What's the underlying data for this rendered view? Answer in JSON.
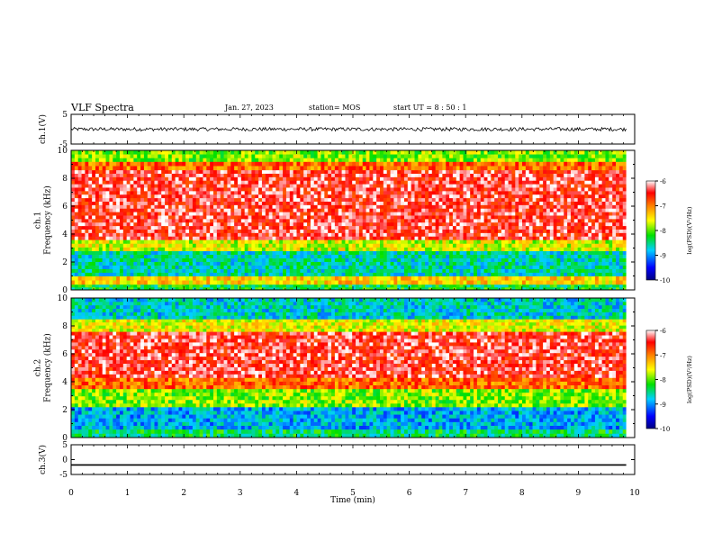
{
  "header": {
    "title": "VLF Spectra",
    "date": "Jan. 27, 2023",
    "station": "station= MOS",
    "start_ut": "start  UT =   8  : 50 : 1"
  },
  "chart_data": [
    {
      "type": "line",
      "panel": "ch1-waveform",
      "ylabel": "ch.1(V)",
      "ylim": [
        -5,
        5
      ],
      "yticks": [
        "5",
        "-5"
      ],
      "x_range_min": [
        0,
        9.85
      ],
      "y_level": 0,
      "noise_amplitude": 0.6,
      "color": "#000000"
    },
    {
      "type": "heatmap",
      "panel": "ch1-spectrogram",
      "ylabel": "ch.1\nFrequency (kHz)",
      "ylim": [
        0,
        10
      ],
      "yticks": [
        "0",
        "2",
        "4",
        "6",
        "8",
        "10"
      ],
      "x_range_min": [
        0,
        9.85
      ],
      "colorbar": {
        "label": "log(PSD)(V²/Hz)",
        "range": [
          -10,
          -6
        ],
        "ticks": [
          "-6",
          "-7",
          "-8",
          "-9",
          "-10"
        ]
      },
      "bands_logpsd": [
        {
          "f": [
            0,
            0.4
          ],
          "level": -8.3
        },
        {
          "f": [
            0.4,
            1.0
          ],
          "level": -7.4
        },
        {
          "f": [
            1.0,
            2.8
          ],
          "level": -8.6
        },
        {
          "f": [
            2.8,
            3.6
          ],
          "level": -7.7
        },
        {
          "f": [
            3.6,
            8.6
          ],
          "level": -6.4
        },
        {
          "f": [
            8.6,
            9.2
          ],
          "level": -6.9
        },
        {
          "f": [
            9.2,
            10
          ],
          "level": -7.9
        }
      ]
    },
    {
      "type": "heatmap",
      "panel": "ch2-spectrogram",
      "ylabel": "ch.2\nFrequency (kHz)",
      "ylim": [
        0,
        10
      ],
      "yticks": [
        "0",
        "2",
        "4",
        "6",
        "8",
        "10"
      ],
      "x_range_min": [
        0,
        9.85
      ],
      "colorbar": {
        "label": "log(PSD)(V²/Hz)",
        "range": [
          -10,
          -6
        ],
        "ticks": [
          "-6",
          "-7",
          "-8",
          "-9",
          "-10"
        ]
      },
      "bands_logpsd": [
        {
          "f": [
            0,
            0.6
          ],
          "level": -8.4
        },
        {
          "f": [
            0.6,
            2.2
          ],
          "level": -8.9
        },
        {
          "f": [
            2.2,
            3.5
          ],
          "level": -7.9
        },
        {
          "f": [
            3.5,
            4.3
          ],
          "level": -6.9
        },
        {
          "f": [
            4.3,
            7.6
          ],
          "level": -6.4
        },
        {
          "f": [
            7.6,
            8.5
          ],
          "level": -7.6
        },
        {
          "f": [
            8.5,
            10
          ],
          "level": -8.7
        }
      ]
    },
    {
      "type": "line",
      "panel": "ch3-waveform",
      "ylabel": "ch.3(V)",
      "ylim": [
        -5,
        5
      ],
      "yticks": [
        "5",
        "0",
        "-5"
      ],
      "x_range_min": [
        0,
        9.85
      ],
      "y_level": -1.8,
      "noise_amplitude": 0,
      "color": "#000000"
    }
  ],
  "xaxis": {
    "label": "Time (min)",
    "range": [
      0,
      10
    ],
    "ticks": [
      "0",
      "1",
      "2",
      "3",
      "4",
      "5",
      "6",
      "7",
      "8",
      "9",
      "10"
    ]
  }
}
